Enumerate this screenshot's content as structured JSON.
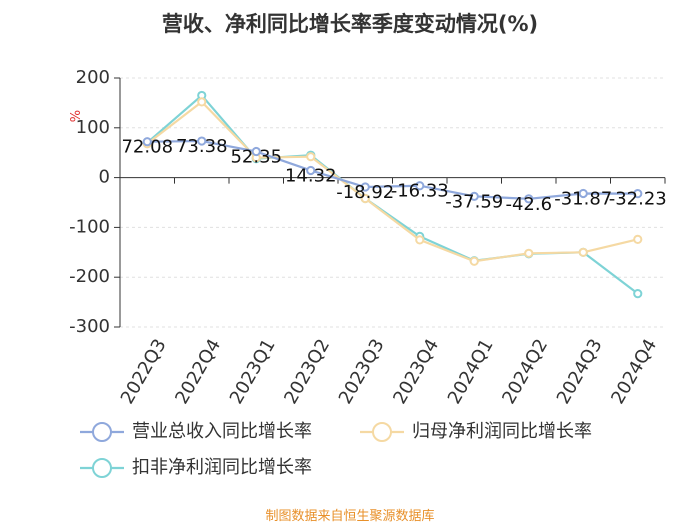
{
  "title": "营收、净利同比增长率季度变动情况(%)",
  "source": "制图数据来自恒生聚源数据库",
  "chart_data": {
    "type": "line",
    "title": "营收、净利同比增长率季度变动情况(%)",
    "ylabel": "%",
    "ylim": [
      -300,
      200
    ],
    "yticks": [
      200,
      100,
      0,
      -100,
      -200,
      -300
    ],
    "categories": [
      "2022Q3",
      "2022Q4",
      "2023Q1",
      "2023Q2",
      "2023Q3",
      "2023Q4",
      "2024Q1",
      "2024Q2",
      "2024Q3",
      "2024Q4"
    ],
    "series": [
      {
        "name": "营业总收入同比增长率",
        "color": "#8fa8dc",
        "values": [
          72.08,
          73.38,
          52.35,
          14.32,
          -18.92,
          -16.33,
          -37.59,
          -42.6,
          -31.87,
          -32.23
        ],
        "labels": [
          "72.08",
          "73.38",
          "52.35",
          "14.32",
          "-18.92",
          "-16.33",
          "-37.59",
          "-42.6",
          "-31.87",
          "-32.23"
        ]
      },
      {
        "name": "归母净利润同比增长率",
        "color": "#f5d9a3",
        "values": [
          68,
          152,
          40,
          42,
          -42,
          -125,
          -168,
          -152,
          -150,
          -124
        ]
      },
      {
        "name": "扣非净利润同比增长率",
        "color": "#7ed3d6",
        "values": [
          70,
          165,
          38,
          45,
          -42,
          -118,
          -167,
          -153,
          -150,
          -233
        ]
      }
    ]
  }
}
